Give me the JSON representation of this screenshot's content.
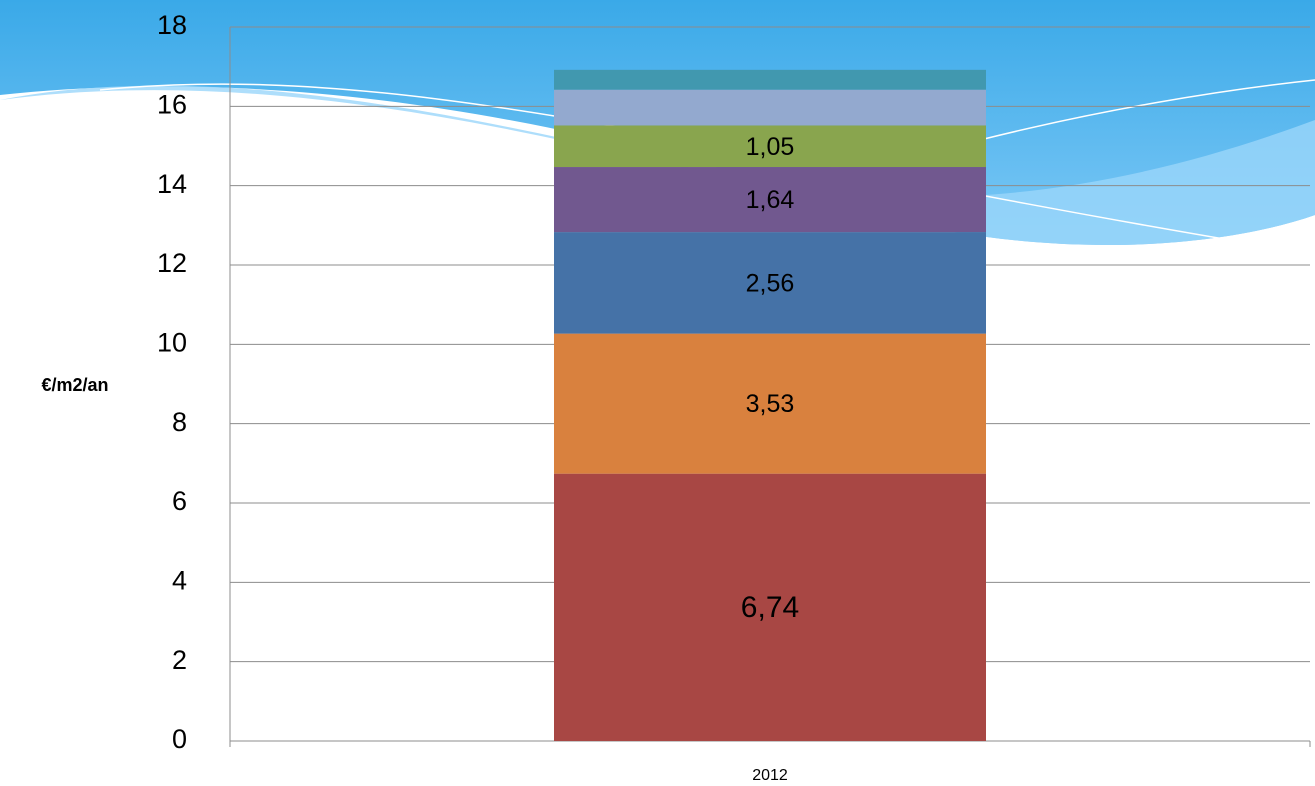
{
  "chart_data": {
    "type": "stacked_bar",
    "y_label": "€/m2/an",
    "categories": [
      "2012"
    ],
    "series": [
      {
        "color": "#a84744",
        "values": [
          6.74
        ],
        "value_labels": [
          "6,74"
        ]
      },
      {
        "color": "#d9813e",
        "values": [
          3.53
        ],
        "value_labels": [
          "3,53"
        ]
      },
      {
        "color": "#4572a7",
        "values": [
          2.56
        ],
        "value_labels": [
          "2,56"
        ]
      },
      {
        "color": "#71588f",
        "values": [
          1.64
        ],
        "value_labels": [
          "1,64"
        ]
      },
      {
        "color": "#89a54e",
        "values": [
          1.05
        ],
        "value_labels": [
          "1,05"
        ]
      },
      {
        "color": "#93a9cf",
        "values": [
          0.9
        ]
      },
      {
        "color": "#4198af",
        "values": [
          0.5
        ]
      }
    ],
    "ylim": [
      0,
      18
    ],
    "yticks": [
      0,
      2,
      4,
      6,
      8,
      10,
      12,
      14,
      16,
      18
    ],
    "grid": true
  }
}
